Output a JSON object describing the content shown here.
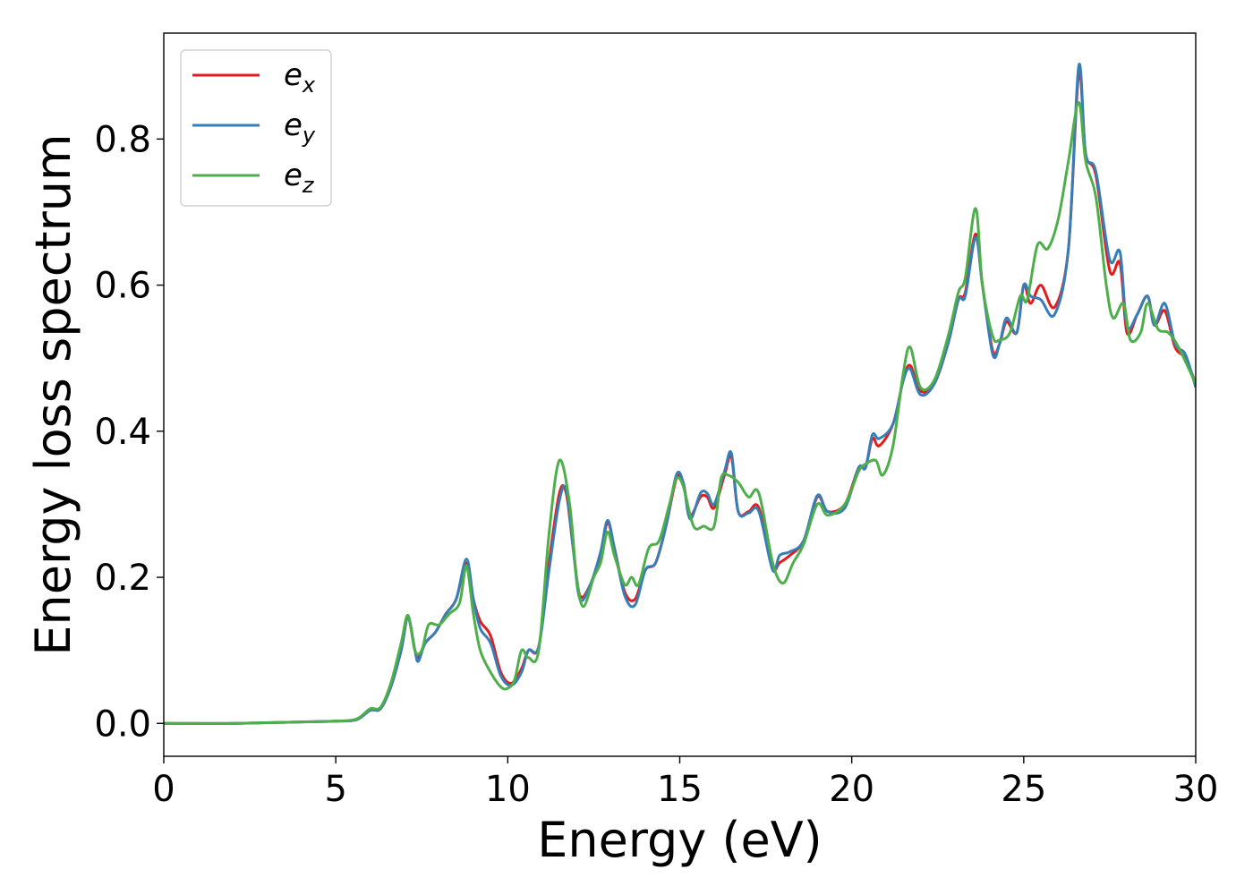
{
  "chart_data": {
    "type": "line",
    "xlabel": "Energy (eV)",
    "ylabel": "Energy loss spectrum",
    "xlim": [
      0,
      30
    ],
    "ylim": [
      -0.045,
      0.945
    ],
    "xticks": [
      0,
      5,
      10,
      15,
      20,
      25,
      30
    ],
    "yticks": [
      0.0,
      0.2,
      0.4,
      0.6,
      0.8
    ],
    "xtick_labels": [
      "0",
      "5",
      "10",
      "15",
      "20",
      "25",
      "30"
    ],
    "ytick_labels": [
      "0.0",
      "0.2",
      "0.4",
      "0.6",
      "0.8"
    ],
    "grid": false,
    "legend_position": "top-left",
    "series": [
      {
        "name": "e_x",
        "legend_base": "e",
        "legend_sub": "x",
        "color": "#e41a1c",
        "points": [
          [
            0,
            0.0
          ],
          [
            2,
            0.0
          ],
          [
            4,
            0.002
          ],
          [
            5,
            0.003
          ],
          [
            5.6,
            0.005
          ],
          [
            6,
            0.018
          ],
          [
            6.3,
            0.02
          ],
          [
            6.6,
            0.05
          ],
          [
            6.9,
            0.1
          ],
          [
            7.1,
            0.145
          ],
          [
            7.3,
            0.1
          ],
          [
            7.4,
            0.09
          ],
          [
            7.6,
            0.11
          ],
          [
            7.9,
            0.125
          ],
          [
            8.2,
            0.15
          ],
          [
            8.5,
            0.17
          ],
          [
            8.8,
            0.22
          ],
          [
            9.0,
            0.17
          ],
          [
            9.2,
            0.14
          ],
          [
            9.5,
            0.12
          ],
          [
            9.8,
            0.07
          ],
          [
            10.1,
            0.055
          ],
          [
            10.4,
            0.075
          ],
          [
            10.6,
            0.1
          ],
          [
            10.9,
            0.105
          ],
          [
            11.2,
            0.22
          ],
          [
            11.5,
            0.315
          ],
          [
            11.7,
            0.315
          ],
          [
            11.9,
            0.24
          ],
          [
            12.1,
            0.175
          ],
          [
            12.4,
            0.19
          ],
          [
            12.7,
            0.23
          ],
          [
            12.9,
            0.275
          ],
          [
            13.1,
            0.24
          ],
          [
            13.4,
            0.18
          ],
          [
            13.7,
            0.17
          ],
          [
            14.0,
            0.21
          ],
          [
            14.3,
            0.22
          ],
          [
            14.6,
            0.27
          ],
          [
            14.9,
            0.335
          ],
          [
            15.1,
            0.33
          ],
          [
            15.3,
            0.285
          ],
          [
            15.6,
            0.31
          ],
          [
            15.8,
            0.31
          ],
          [
            16.0,
            0.295
          ],
          [
            16.3,
            0.34
          ],
          [
            16.5,
            0.365
          ],
          [
            16.7,
            0.29
          ],
          [
            17.0,
            0.29
          ],
          [
            17.3,
            0.295
          ],
          [
            17.7,
            0.215
          ],
          [
            17.9,
            0.22
          ],
          [
            18.2,
            0.23
          ],
          [
            18.6,
            0.25
          ],
          [
            19.0,
            0.31
          ],
          [
            19.3,
            0.29
          ],
          [
            19.8,
            0.3
          ],
          [
            20.2,
            0.35
          ],
          [
            20.4,
            0.35
          ],
          [
            20.6,
            0.39
          ],
          [
            20.8,
            0.38
          ],
          [
            21.2,
            0.41
          ],
          [
            21.5,
            0.47
          ],
          [
            21.7,
            0.49
          ],
          [
            22.0,
            0.455
          ],
          [
            22.4,
            0.465
          ],
          [
            22.8,
            0.52
          ],
          [
            23.1,
            0.58
          ],
          [
            23.3,
            0.59
          ],
          [
            23.6,
            0.67
          ],
          [
            23.8,
            0.6
          ],
          [
            24.1,
            0.51
          ],
          [
            24.3,
            0.52
          ],
          [
            24.5,
            0.55
          ],
          [
            24.8,
            0.535
          ],
          [
            25.0,
            0.6
          ],
          [
            25.2,
            0.575
          ],
          [
            25.5,
            0.6
          ],
          [
            25.9,
            0.57
          ],
          [
            26.3,
            0.65
          ],
          [
            26.6,
            0.89
          ],
          [
            26.8,
            0.78
          ],
          [
            27.1,
            0.75
          ],
          [
            27.5,
            0.62
          ],
          [
            27.8,
            0.63
          ],
          [
            28.0,
            0.535
          ],
          [
            28.3,
            0.56
          ],
          [
            28.6,
            0.585
          ],
          [
            28.8,
            0.545
          ],
          [
            29.1,
            0.565
          ],
          [
            29.4,
            0.515
          ],
          [
            29.7,
            0.5
          ],
          [
            30.0,
            0.465
          ]
        ]
      },
      {
        "name": "e_y",
        "legend_base": "e",
        "legend_sub": "y",
        "color": "#377eb8",
        "points": [
          [
            0,
            0.0
          ],
          [
            2,
            0.0
          ],
          [
            4,
            0.002
          ],
          [
            5,
            0.003
          ],
          [
            5.6,
            0.005
          ],
          [
            6,
            0.018
          ],
          [
            6.3,
            0.02
          ],
          [
            6.6,
            0.05
          ],
          [
            6.9,
            0.1
          ],
          [
            7.1,
            0.145
          ],
          [
            7.3,
            0.1
          ],
          [
            7.4,
            0.085
          ],
          [
            7.6,
            0.11
          ],
          [
            7.9,
            0.125
          ],
          [
            8.2,
            0.15
          ],
          [
            8.5,
            0.17
          ],
          [
            8.8,
            0.225
          ],
          [
            9.0,
            0.17
          ],
          [
            9.2,
            0.13
          ],
          [
            9.5,
            0.11
          ],
          [
            9.8,
            0.065
          ],
          [
            10.1,
            0.052
          ],
          [
            10.4,
            0.07
          ],
          [
            10.6,
            0.1
          ],
          [
            10.9,
            0.105
          ],
          [
            11.2,
            0.21
          ],
          [
            11.5,
            0.305
          ],
          [
            11.7,
            0.32
          ],
          [
            11.9,
            0.24
          ],
          [
            12.1,
            0.17
          ],
          [
            12.4,
            0.19
          ],
          [
            12.7,
            0.235
          ],
          [
            12.9,
            0.278
          ],
          [
            13.1,
            0.24
          ],
          [
            13.4,
            0.175
          ],
          [
            13.7,
            0.162
          ],
          [
            14.0,
            0.21
          ],
          [
            14.3,
            0.22
          ],
          [
            14.6,
            0.27
          ],
          [
            14.9,
            0.34
          ],
          [
            15.1,
            0.33
          ],
          [
            15.3,
            0.28
          ],
          [
            15.6,
            0.315
          ],
          [
            15.8,
            0.315
          ],
          [
            16.0,
            0.3
          ],
          [
            16.3,
            0.345
          ],
          [
            16.5,
            0.37
          ],
          [
            16.7,
            0.29
          ],
          [
            17.0,
            0.288
          ],
          [
            17.3,
            0.29
          ],
          [
            17.7,
            0.21
          ],
          [
            17.9,
            0.23
          ],
          [
            18.2,
            0.235
          ],
          [
            18.6,
            0.25
          ],
          [
            19.0,
            0.312
          ],
          [
            19.3,
            0.29
          ],
          [
            19.8,
            0.295
          ],
          [
            20.2,
            0.35
          ],
          [
            20.4,
            0.35
          ],
          [
            20.6,
            0.395
          ],
          [
            20.8,
            0.39
          ],
          [
            21.2,
            0.41
          ],
          [
            21.5,
            0.47
          ],
          [
            21.7,
            0.485
          ],
          [
            22.0,
            0.45
          ],
          [
            22.4,
            0.465
          ],
          [
            22.8,
            0.52
          ],
          [
            23.1,
            0.58
          ],
          [
            23.3,
            0.585
          ],
          [
            23.6,
            0.665
          ],
          [
            23.8,
            0.6
          ],
          [
            24.1,
            0.505
          ],
          [
            24.3,
            0.52
          ],
          [
            24.5,
            0.555
          ],
          [
            24.8,
            0.535
          ],
          [
            25.0,
            0.6
          ],
          [
            25.2,
            0.585
          ],
          [
            25.5,
            0.58
          ],
          [
            25.9,
            0.56
          ],
          [
            26.3,
            0.65
          ],
          [
            26.6,
            0.9
          ],
          [
            26.8,
            0.78
          ],
          [
            27.1,
            0.755
          ],
          [
            27.5,
            0.635
          ],
          [
            27.8,
            0.645
          ],
          [
            28.0,
            0.545
          ],
          [
            28.3,
            0.56
          ],
          [
            28.6,
            0.585
          ],
          [
            28.8,
            0.545
          ],
          [
            29.1,
            0.575
          ],
          [
            29.4,
            0.52
          ],
          [
            29.7,
            0.505
          ],
          [
            30.0,
            0.46
          ]
        ]
      },
      {
        "name": "e_z",
        "legend_base": "e",
        "legend_sub": "z",
        "color": "#4daf4a",
        "points": [
          [
            0,
            0.0
          ],
          [
            2,
            0.0
          ],
          [
            4,
            0.002
          ],
          [
            5,
            0.003
          ],
          [
            5.6,
            0.006
          ],
          [
            6,
            0.02
          ],
          [
            6.3,
            0.022
          ],
          [
            6.6,
            0.055
          ],
          [
            6.9,
            0.11
          ],
          [
            7.1,
            0.148
          ],
          [
            7.3,
            0.1
          ],
          [
            7.5,
            0.1
          ],
          [
            7.7,
            0.135
          ],
          [
            8.0,
            0.135
          ],
          [
            8.3,
            0.15
          ],
          [
            8.6,
            0.165
          ],
          [
            8.8,
            0.215
          ],
          [
            9.0,
            0.15
          ],
          [
            9.2,
            0.1
          ],
          [
            9.5,
            0.07
          ],
          [
            9.8,
            0.05
          ],
          [
            10.0,
            0.048
          ],
          [
            10.2,
            0.06
          ],
          [
            10.4,
            0.1
          ],
          [
            10.6,
            0.09
          ],
          [
            10.9,
            0.1
          ],
          [
            11.2,
            0.26
          ],
          [
            11.5,
            0.36
          ],
          [
            11.8,
            0.3
          ],
          [
            12.0,
            0.2
          ],
          [
            12.2,
            0.16
          ],
          [
            12.5,
            0.2
          ],
          [
            12.7,
            0.22
          ],
          [
            12.9,
            0.262
          ],
          [
            13.1,
            0.23
          ],
          [
            13.4,
            0.19
          ],
          [
            13.6,
            0.2
          ],
          [
            13.8,
            0.19
          ],
          [
            14.1,
            0.24
          ],
          [
            14.4,
            0.25
          ],
          [
            14.7,
            0.3
          ],
          [
            14.9,
            0.335
          ],
          [
            15.1,
            0.325
          ],
          [
            15.4,
            0.27
          ],
          [
            15.7,
            0.27
          ],
          [
            16.0,
            0.27
          ],
          [
            16.2,
            0.335
          ],
          [
            16.4,
            0.34
          ],
          [
            16.7,
            0.33
          ],
          [
            17.0,
            0.31
          ],
          [
            17.3,
            0.315
          ],
          [
            17.7,
            0.22
          ],
          [
            18.0,
            0.192
          ],
          [
            18.3,
            0.22
          ],
          [
            18.6,
            0.245
          ],
          [
            19.0,
            0.3
          ],
          [
            19.3,
            0.285
          ],
          [
            19.8,
            0.3
          ],
          [
            20.2,
            0.345
          ],
          [
            20.4,
            0.355
          ],
          [
            20.7,
            0.36
          ],
          [
            20.9,
            0.34
          ],
          [
            21.2,
            0.38
          ],
          [
            21.5,
            0.48
          ],
          [
            21.7,
            0.515
          ],
          [
            22.0,
            0.46
          ],
          [
            22.4,
            0.47
          ],
          [
            22.8,
            0.53
          ],
          [
            23.1,
            0.59
          ],
          [
            23.3,
            0.61
          ],
          [
            23.6,
            0.705
          ],
          [
            23.8,
            0.6
          ],
          [
            24.1,
            0.53
          ],
          [
            24.3,
            0.525
          ],
          [
            24.6,
            0.535
          ],
          [
            24.9,
            0.585
          ],
          [
            25.1,
            0.58
          ],
          [
            25.4,
            0.655
          ],
          [
            25.7,
            0.65
          ],
          [
            26.0,
            0.69
          ],
          [
            26.3,
            0.77
          ],
          [
            26.6,
            0.85
          ],
          [
            26.8,
            0.77
          ],
          [
            27.1,
            0.72
          ],
          [
            27.4,
            0.6
          ],
          [
            27.6,
            0.555
          ],
          [
            27.9,
            0.575
          ],
          [
            28.1,
            0.525
          ],
          [
            28.4,
            0.535
          ],
          [
            28.6,
            0.575
          ],
          [
            28.9,
            0.54
          ],
          [
            29.2,
            0.535
          ],
          [
            29.5,
            0.515
          ],
          [
            30.0,
            0.465
          ]
        ]
      }
    ]
  }
}
